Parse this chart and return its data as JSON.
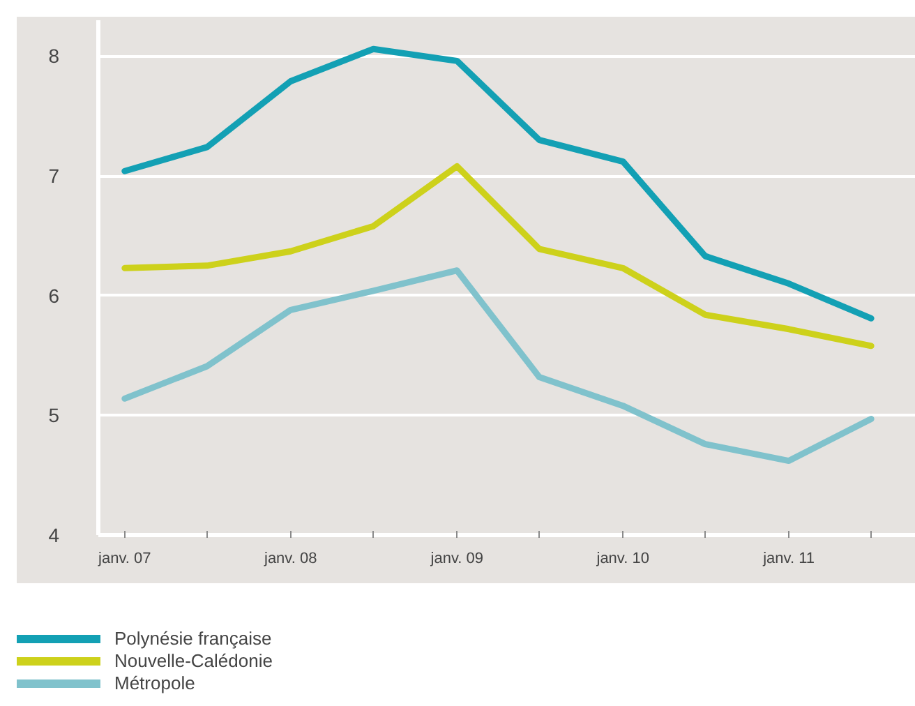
{
  "chart_data": {
    "type": "line",
    "x": [
      "2007-01",
      "2007-07",
      "2008-01",
      "2008-07",
      "2009-01",
      "2009-07",
      "2010-01",
      "2010-07",
      "2011-01",
      "2011-07"
    ],
    "xlim": [
      "2006-11-04",
      "2011-10-07"
    ],
    "xticks": [
      {
        "value": "2007-01",
        "label": "janv. 07"
      },
      {
        "value": "2007-07",
        "label": null
      },
      {
        "value": "2008-01",
        "label": "janv. 08"
      },
      {
        "value": "2008-07",
        "label": null
      },
      {
        "value": "2009-01",
        "label": "janv. 09"
      },
      {
        "value": "2009-07",
        "label": null
      },
      {
        "value": "2010-01",
        "label": "janv. 10"
      },
      {
        "value": "2010-07",
        "label": null
      },
      {
        "value": "2011-01",
        "label": "janv. 11"
      },
      {
        "value": "2011-07",
        "label": null
      }
    ],
    "ylim": [
      4,
      8.3
    ],
    "yticks": [
      4,
      5,
      6,
      7,
      8
    ],
    "grid": "y",
    "legend": "bottom left",
    "line_style": "solid",
    "series": [
      {
        "name": "Polynésie française",
        "color": "#13a0b4",
        "values": [
          7.04,
          7.24,
          7.79,
          8.06,
          7.96,
          7.3,
          7.12,
          6.33,
          6.1,
          5.81
        ]
      },
      {
        "name": "Nouvelle-Calédonie",
        "color": "#cdd11b",
        "values": [
          6.23,
          6.25,
          6.37,
          6.58,
          7.08,
          6.39,
          6.23,
          5.84,
          5.72,
          5.58
        ]
      },
      {
        "name": "Métropole",
        "color": "#80c2cc",
        "values": [
          5.14,
          5.41,
          5.88,
          6.04,
          6.21,
          5.32,
          5.08,
          4.76,
          4.62,
          4.97
        ]
      }
    ]
  }
}
